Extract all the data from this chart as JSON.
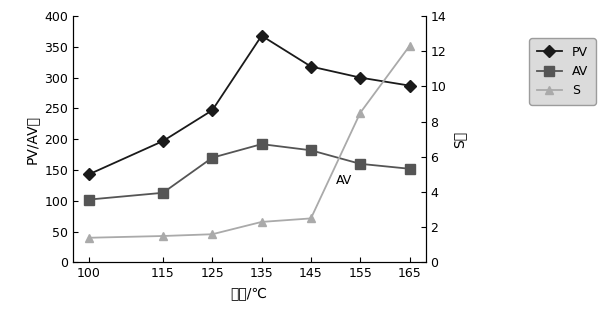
{
  "x": [
    100,
    115,
    125,
    135,
    145,
    155,
    165
  ],
  "PV": [
    143,
    197,
    247,
    368,
    318,
    300,
    287
  ],
  "AV": [
    102,
    113,
    170,
    192,
    182,
    160,
    152
  ],
  "S": [
    1.4,
    1.5,
    1.6,
    2.3,
    2.5,
    8.5,
    12.3
  ],
  "xlabel": "温度/℃",
  "ylabel_left": "PV/AV値",
  "ylabel_right": "S値",
  "ylim_left": [
    0,
    400
  ],
  "ylim_right": [
    0,
    14
  ],
  "yticks_left": [
    0,
    50,
    100,
    150,
    200,
    250,
    300,
    350,
    400
  ],
  "yticks_right": [
    0,
    2,
    4,
    6,
    8,
    10,
    12,
    14
  ],
  "xticks": [
    100,
    115,
    125,
    135,
    145,
    155,
    165
  ],
  "PV_color": "#1a1a1a",
  "AV_color": "#555555",
  "S_color": "#aaaaaa",
  "annotation_text": "AV",
  "legend_facecolor": "#d3d3d3",
  "background_color": "#ffffff",
  "figwidth": 6.08,
  "figheight": 3.2,
  "dpi": 100
}
